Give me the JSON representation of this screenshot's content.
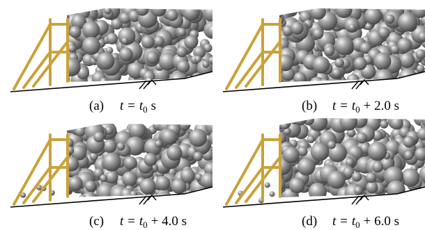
{
  "panels": [
    {
      "label": "(a)",
      "lhs": "t =",
      "base": "t",
      "sub": "0",
      "rhs": "s"
    },
    {
      "label": "(b)",
      "lhs": "t =",
      "base": "t",
      "sub": "0",
      "rhs": "+ 2.0 s"
    },
    {
      "label": "(c)",
      "lhs": "t =",
      "base": "t",
      "sub": "0",
      "rhs": "+ 4.0 s"
    },
    {
      "label": "(d)",
      "lhs": "t =",
      "base": "t",
      "sub": "0",
      "rhs": "+ 6.0 s"
    }
  ]
}
